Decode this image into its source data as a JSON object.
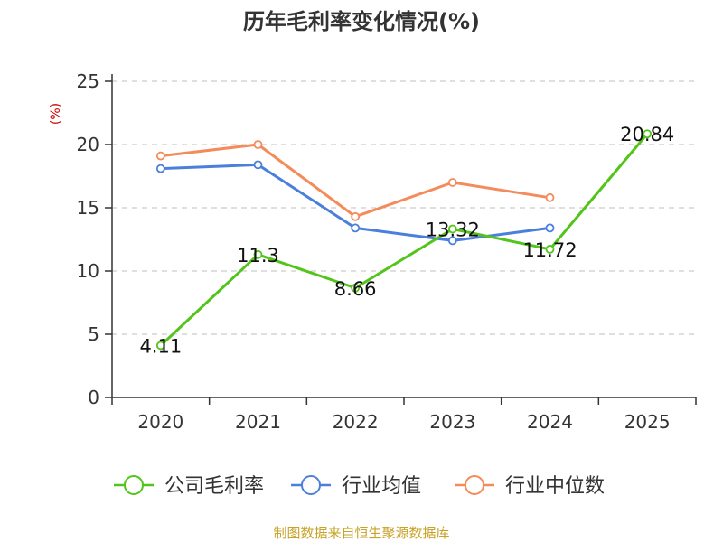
{
  "chart_data": {
    "type": "line",
    "title": "历年毛利率变化情况(%)",
    "unit": "(%)",
    "categories": [
      "2020",
      "2021",
      "2022",
      "2023",
      "2024",
      "2025"
    ],
    "ylim": [
      0,
      25
    ],
    "yticks": [
      0,
      5,
      10,
      15,
      20,
      25
    ],
    "grid": true,
    "legend_position": "bottom",
    "series": [
      {
        "name": "公司毛利率",
        "color": "#52c41a",
        "values": [
          4.11,
          11.3,
          8.66,
          13.32,
          11.72,
          20.84
        ],
        "labels": true
      },
      {
        "name": "行业均值",
        "color": "#4a7fdb",
        "values": [
          18.1,
          18.4,
          13.4,
          12.4,
          13.4,
          null
        ],
        "labels": false
      },
      {
        "name": "行业中位数",
        "color": "#f48b5a",
        "values": [
          19.1,
          20.0,
          14.3,
          17.0,
          15.8,
          null
        ],
        "labels": false
      }
    ]
  },
  "footer": "制图数据来自恒生聚源数据库"
}
